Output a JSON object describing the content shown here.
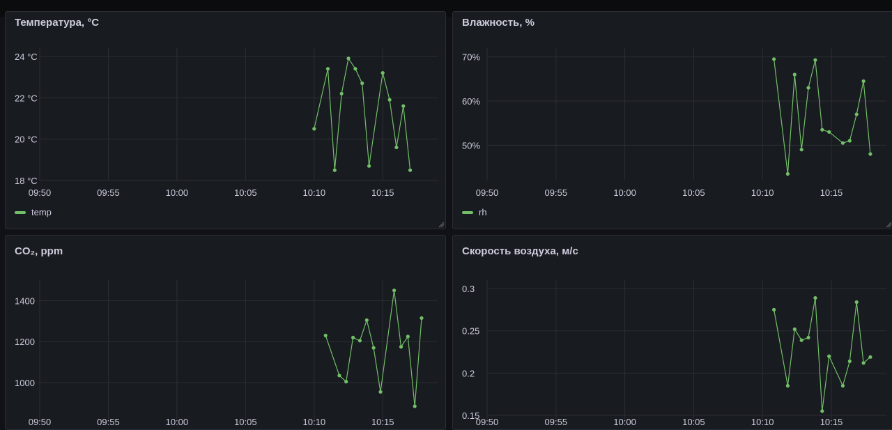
{
  "colors": {
    "series": "#73bf69",
    "grid": "#2b2e33",
    "text": "#ccccdc",
    "panel_bg": "#181b1f"
  },
  "panels": {
    "temp": {
      "title": "Температура, °C",
      "legend": "temp"
    },
    "rh": {
      "title": "Влажность, %",
      "legend": "rh"
    },
    "co2": {
      "title": "CO₂, ppm"
    },
    "air": {
      "title": "Скорость воздуха, м/с"
    }
  },
  "chart_data": [
    {
      "type": "line",
      "title": "Температура, °C",
      "x_tick_labels": [
        "09:50",
        "09:55",
        "10:00",
        "10:05",
        "10:10",
        "10:15"
      ],
      "y_ticks": [
        18,
        20,
        22,
        24
      ],
      "y_tick_labels": [
        "18 °C",
        "20 °C",
        "22 °C",
        "24 °C"
      ],
      "ylim": [
        18,
        24.4
      ],
      "x_range": [
        "09:50",
        "10:19"
      ],
      "grid": true,
      "legend_position": "bottom-left",
      "series": [
        {
          "name": "temp",
          "x": [
            "10:10:00",
            "10:11:00",
            "10:11:30",
            "10:12:00",
            "10:12:30",
            "10:13:00",
            "10:13:30",
            "10:14:00",
            "10:15:00",
            "10:15:30",
            "10:16:00",
            "10:16:30",
            "10:17:00"
          ],
          "y": [
            20.5,
            23.4,
            18.5,
            22.2,
            23.9,
            23.4,
            22.7,
            18.7,
            23.2,
            21.9,
            19.6,
            21.6,
            18.5
          ]
        }
      ]
    },
    {
      "type": "line",
      "title": "Влажность, %",
      "x_tick_labels": [
        "09:50",
        "09:55",
        "10:00",
        "10:05",
        "10:10",
        "10:15"
      ],
      "y_ticks": [
        50,
        60,
        70
      ],
      "y_tick_labels": [
        "50%",
        "60%",
        "70%"
      ],
      "ylim": [
        42,
        72
      ],
      "x_range": [
        "09:50",
        "10:19"
      ],
      "grid": true,
      "legend_position": "bottom-left",
      "series": [
        {
          "name": "rh",
          "x": [
            "10:10:50",
            "10:11:50",
            "10:12:20",
            "10:12:50",
            "10:13:20",
            "10:13:50",
            "10:14:20",
            "10:14:50",
            "10:15:50",
            "10:16:20",
            "10:16:50",
            "10:17:20",
            "10:17:50"
          ],
          "y": [
            69.5,
            43.5,
            66,
            49,
            63,
            69.3,
            53.5,
            53,
            50.5,
            51,
            57,
            64.5,
            48
          ]
        }
      ]
    },
    {
      "type": "line",
      "title": "CO₂, ppm",
      "x_tick_labels": [
        "09:50",
        "09:55",
        "10:00",
        "10:05",
        "10:10",
        "10:15"
      ],
      "y_ticks": [
        1000,
        1200,
        1400
      ],
      "y_tick_labels": [
        "1000",
        "1200",
        "1400"
      ],
      "ylim": [
        820,
        1500
      ],
      "x_range": [
        "09:50",
        "10:19"
      ],
      "grid": true,
      "series": [
        {
          "x": [
            "10:10:50",
            "10:11:50",
            "10:12:20",
            "10:12:50",
            "10:13:20",
            "10:13:50",
            "10:14:20",
            "10:14:50",
            "10:15:50",
            "10:16:20",
            "10:16:50",
            "10:17:20",
            "10:17:50"
          ],
          "y": [
            1230,
            1035,
            1005,
            1220,
            1205,
            1305,
            1170,
            955,
            1450,
            1175,
            1225,
            885,
            1315
          ]
        }
      ]
    },
    {
      "type": "line",
      "title": "Скорость воздуха, м/с",
      "x_tick_labels": [
        "09:50",
        "09:55",
        "10:00",
        "10:05",
        "10:10",
        "10:15"
      ],
      "y_ticks": [
        0.15,
        0.2,
        0.25,
        0.3
      ],
      "y_tick_labels": [
        "0.15",
        "0.2",
        "0.25",
        "0.3"
      ],
      "ylim": [
        0.145,
        0.31
      ],
      "x_range": [
        "09:50",
        "10:19"
      ],
      "grid": true,
      "series": [
        {
          "x": [
            "10:10:50",
            "10:11:50",
            "10:12:20",
            "10:12:50",
            "10:13:20",
            "10:13:50",
            "10:14:20",
            "10:14:50",
            "10:15:50",
            "10:16:20",
            "10:16:50",
            "10:17:20",
            "10:17:50"
          ],
          "y": [
            0.275,
            0.185,
            0.252,
            0.239,
            0.242,
            0.289,
            0.155,
            0.22,
            0.185,
            0.214,
            0.284,
            0.212,
            0.219
          ]
        }
      ]
    }
  ]
}
